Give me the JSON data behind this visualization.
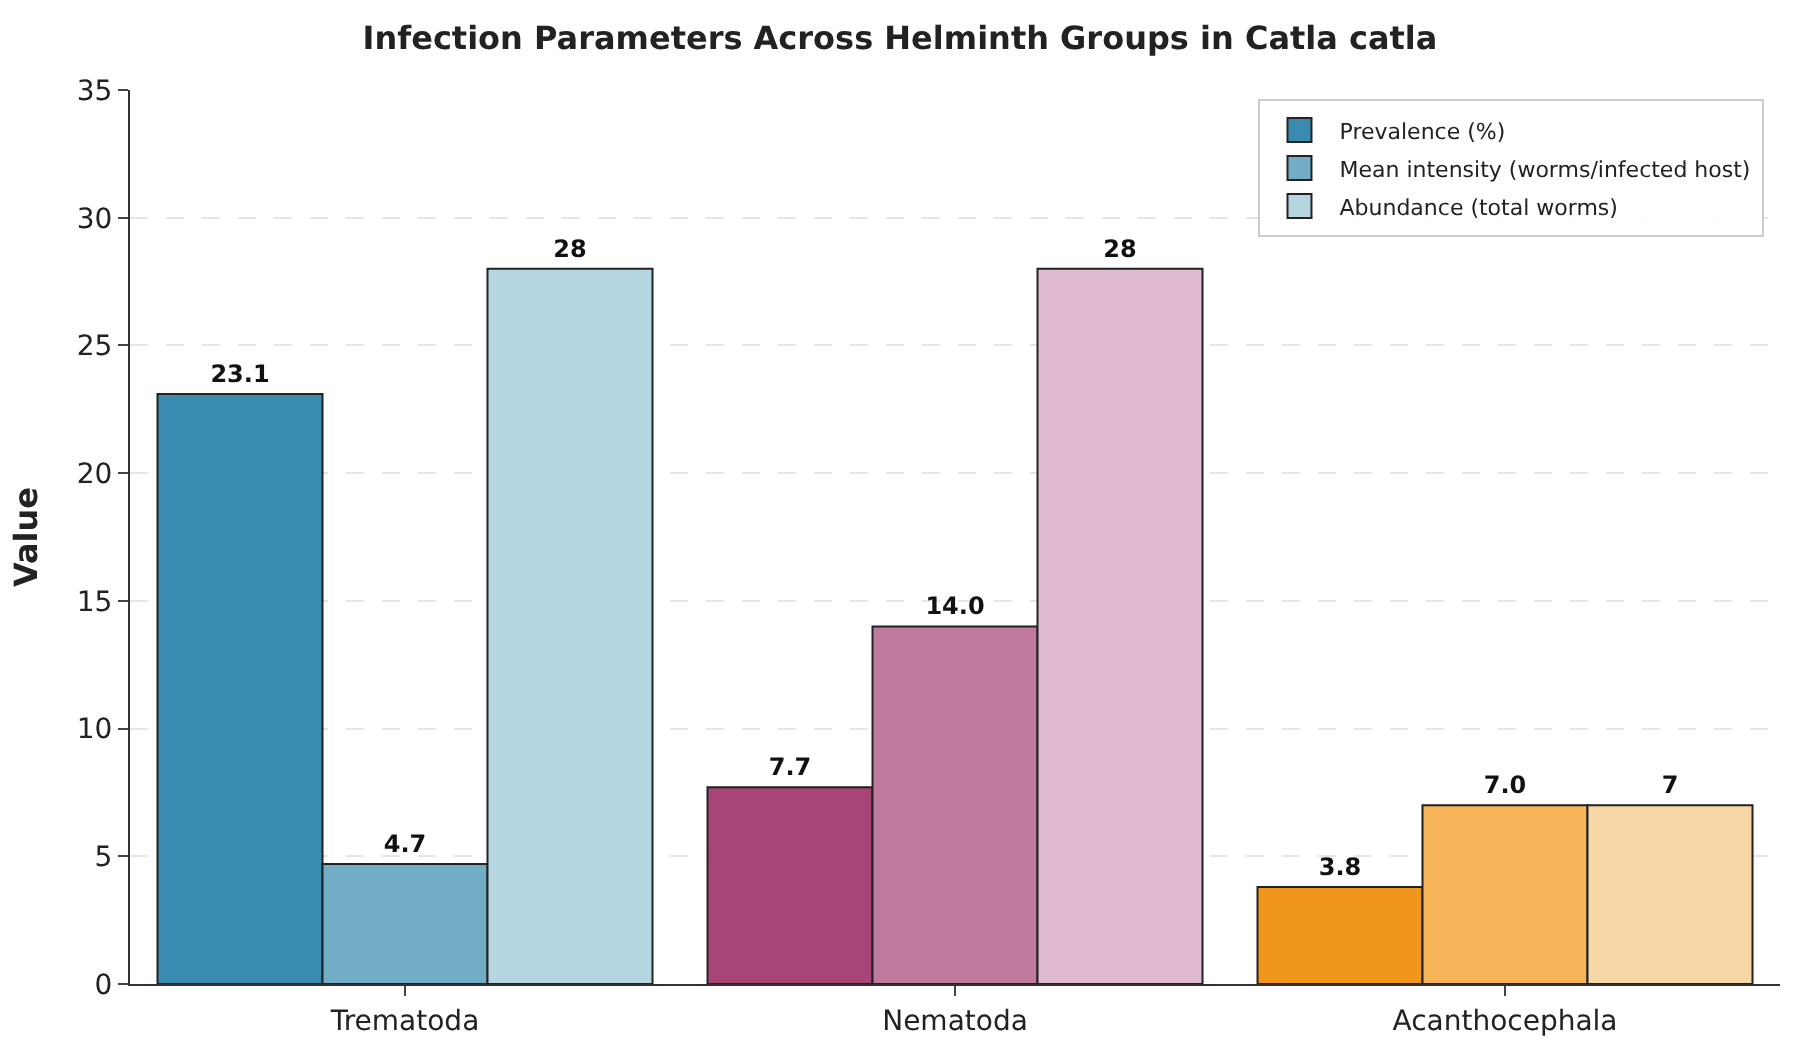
{
  "chart_data": {
    "type": "bar",
    "title": "Infection Parameters Across Helminth Groups in Catla catla",
    "ylabel": "Value",
    "categories": [
      "Trematoda",
      "Nematoda",
      "Acanthocephala"
    ],
    "series": [
      {
        "name": "Prevalence (%)",
        "colors": [
          "#3a8bb0",
          "#a64576",
          "#f0961a"
        ],
        "values": [
          23.1,
          7.7,
          3.8
        ],
        "value_labels": [
          "23.1",
          "7.7",
          "3.8"
        ]
      },
      {
        "name": "Mean intensity (worms/infected host)",
        "colors": [
          "#72adc8",
          "#c07a9e",
          "#f5b457"
        ],
        "values": [
          4.7,
          14.0,
          7.0
        ],
        "value_labels": [
          "4.7",
          "14.0",
          "7.0"
        ]
      },
      {
        "name": "Abundance (total worms)",
        "colors": [
          "#b5d6e0",
          "#e0bad0",
          "#f8d7a6"
        ],
        "values": [
          28,
          28,
          7
        ],
        "value_labels": [
          "28",
          "28",
          "7"
        ]
      }
    ],
    "ylim": [
      0,
      35
    ],
    "yticks": [
      0,
      5,
      10,
      15,
      20,
      25,
      30,
      35
    ],
    "grid": "y",
    "legend": "top right"
  }
}
